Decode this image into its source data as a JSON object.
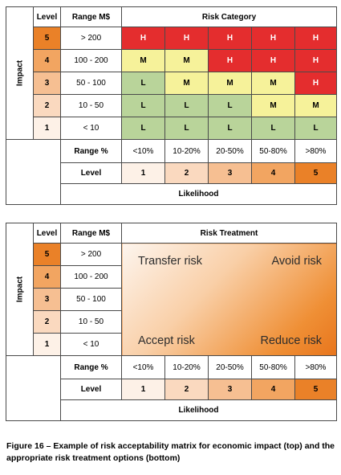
{
  "matrix1": {
    "impact_label": "Impact",
    "level_header": "Level",
    "range_header": "Range M$",
    "category_header": "Risk Category",
    "rows": [
      {
        "level": "5",
        "range": "> 200",
        "cells": [
          "H",
          "H",
          "H",
          "H",
          "H"
        ]
      },
      {
        "level": "4",
        "range": "100 - 200",
        "cells": [
          "M",
          "M",
          "H",
          "H",
          "H"
        ]
      },
      {
        "level": "3",
        "range": "50 - 100",
        "cells": [
          "L",
          "M",
          "M",
          "M",
          "H"
        ]
      },
      {
        "level": "2",
        "range": "10 - 50",
        "cells": [
          "L",
          "L",
          "L",
          "M",
          "M"
        ]
      },
      {
        "level": "1",
        "range": "< 10",
        "cells": [
          "L",
          "L",
          "L",
          "L",
          "L"
        ]
      }
    ],
    "range_pct_label": "Range %",
    "ranges_pct": [
      "<10%",
      "10-20%",
      "20-50%",
      "50-80%",
      ">80%"
    ],
    "level_label": "Level",
    "likelihood_levels": [
      "1",
      "2",
      "3",
      "4",
      "5"
    ],
    "likelihood_label": "Likelihood"
  },
  "matrix2": {
    "impact_label": "Impact",
    "level_header": "Level",
    "range_header": "Range M$",
    "treatment_header": "Risk Treatment",
    "rows": [
      {
        "level": "5",
        "range": "> 200"
      },
      {
        "level": "4",
        "range": "100 - 200"
      },
      {
        "level": "3",
        "range": "50 - 100"
      },
      {
        "level": "2",
        "range": "10 - 50"
      },
      {
        "level": "1",
        "range": "< 10"
      }
    ],
    "treatments": {
      "transfer": "Transfer risk",
      "avoid": "Avoid risk",
      "accept": "Accept risk",
      "reduce": "Reduce risk"
    },
    "range_pct_label": "Range %",
    "ranges_pct": [
      "<10%",
      "10-20%",
      "20-50%",
      "50-80%",
      ">80%"
    ],
    "level_label": "Level",
    "likelihood_levels": [
      "1",
      "2",
      "3",
      "4",
      "5"
    ],
    "likelihood_label": "Likelihood"
  },
  "colors": {
    "H": "#e42d2e",
    "M": "#f6f29a",
    "L": "#b9d49a",
    "level_shades": [
      "#fdf1e7",
      "#fad9bf",
      "#f6bf92",
      "#f2a561",
      "#ea8128"
    ]
  },
  "caption": "Figure 16 – Example of risk acceptability matrix for economic impact (top) and the appropriate risk treatment options (bottom)"
}
